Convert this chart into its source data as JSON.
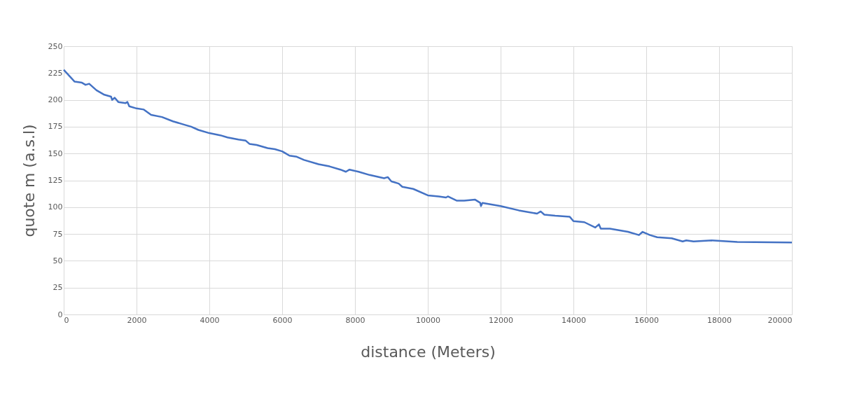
{
  "chart_data": {
    "type": "line",
    "xlabel": "distance  (Meters)",
    "ylabel": "quote m (a.s.l)",
    "x": [
      0,
      300,
      500,
      600,
      700,
      900,
      1100,
      1300,
      1330,
      1400,
      1500,
      1700,
      1750,
      1800,
      2000,
      2200,
      2400,
      2700,
      3000,
      3300,
      3500,
      3700,
      4000,
      4300,
      4500,
      4800,
      5000,
      5100,
      5300,
      5600,
      5800,
      6000,
      6100,
      6200,
      6400,
      6600,
      7000,
      7300,
      7600,
      7750,
      7850,
      8100,
      8400,
      8800,
      8900,
      9000,
      9200,
      9300,
      9600,
      10000,
      10300,
      10500,
      10550,
      10800,
      11000,
      11300,
      11440,
      11460,
      11500,
      12000,
      12500,
      13000,
      13100,
      13200,
      13500,
      13900,
      14000,
      14300,
      14600,
      14700,
      14750,
      15000,
      15500,
      15800,
      15900,
      16100,
      16300,
      16700,
      17000,
      17100,
      17300,
      17800,
      18500,
      20000
    ],
    "series": [
      {
        "color": "#4472c4",
        "values": [
          228,
          217,
          216,
          214,
          215,
          209,
          205,
          203,
          200,
          202,
          198,
          197,
          198,
          194,
          192,
          191,
          186,
          184,
          180,
          177,
          175,
          172,
          169,
          167,
          165,
          163,
          162,
          159,
          158,
          155,
          154,
          152,
          150,
          148,
          147,
          144,
          140,
          138,
          135,
          133,
          135,
          133,
          130,
          127,
          128,
          124,
          122,
          119,
          117,
          111,
          110,
          109,
          110,
          106,
          106,
          107,
          104,
          101,
          104,
          101,
          97,
          94,
          96,
          93,
          92,
          91,
          87,
          86,
          81,
          84,
          80,
          80,
          77,
          74,
          77,
          74,
          72,
          71,
          68,
          69,
          68,
          69,
          67.5,
          67
        ]
      }
    ],
    "xlim": [
      0,
      20000
    ],
    "xticks": [
      0,
      2000,
      4000,
      6000,
      8000,
      10000,
      12000,
      14000,
      16000,
      18000,
      20000
    ],
    "ylim": [
      0,
      250
    ],
    "yticks": [
      0,
      25,
      50,
      75,
      100,
      125,
      150,
      175,
      200,
      225,
      250
    ],
    "grid": true,
    "marker": "none",
    "line_style": "solid"
  }
}
